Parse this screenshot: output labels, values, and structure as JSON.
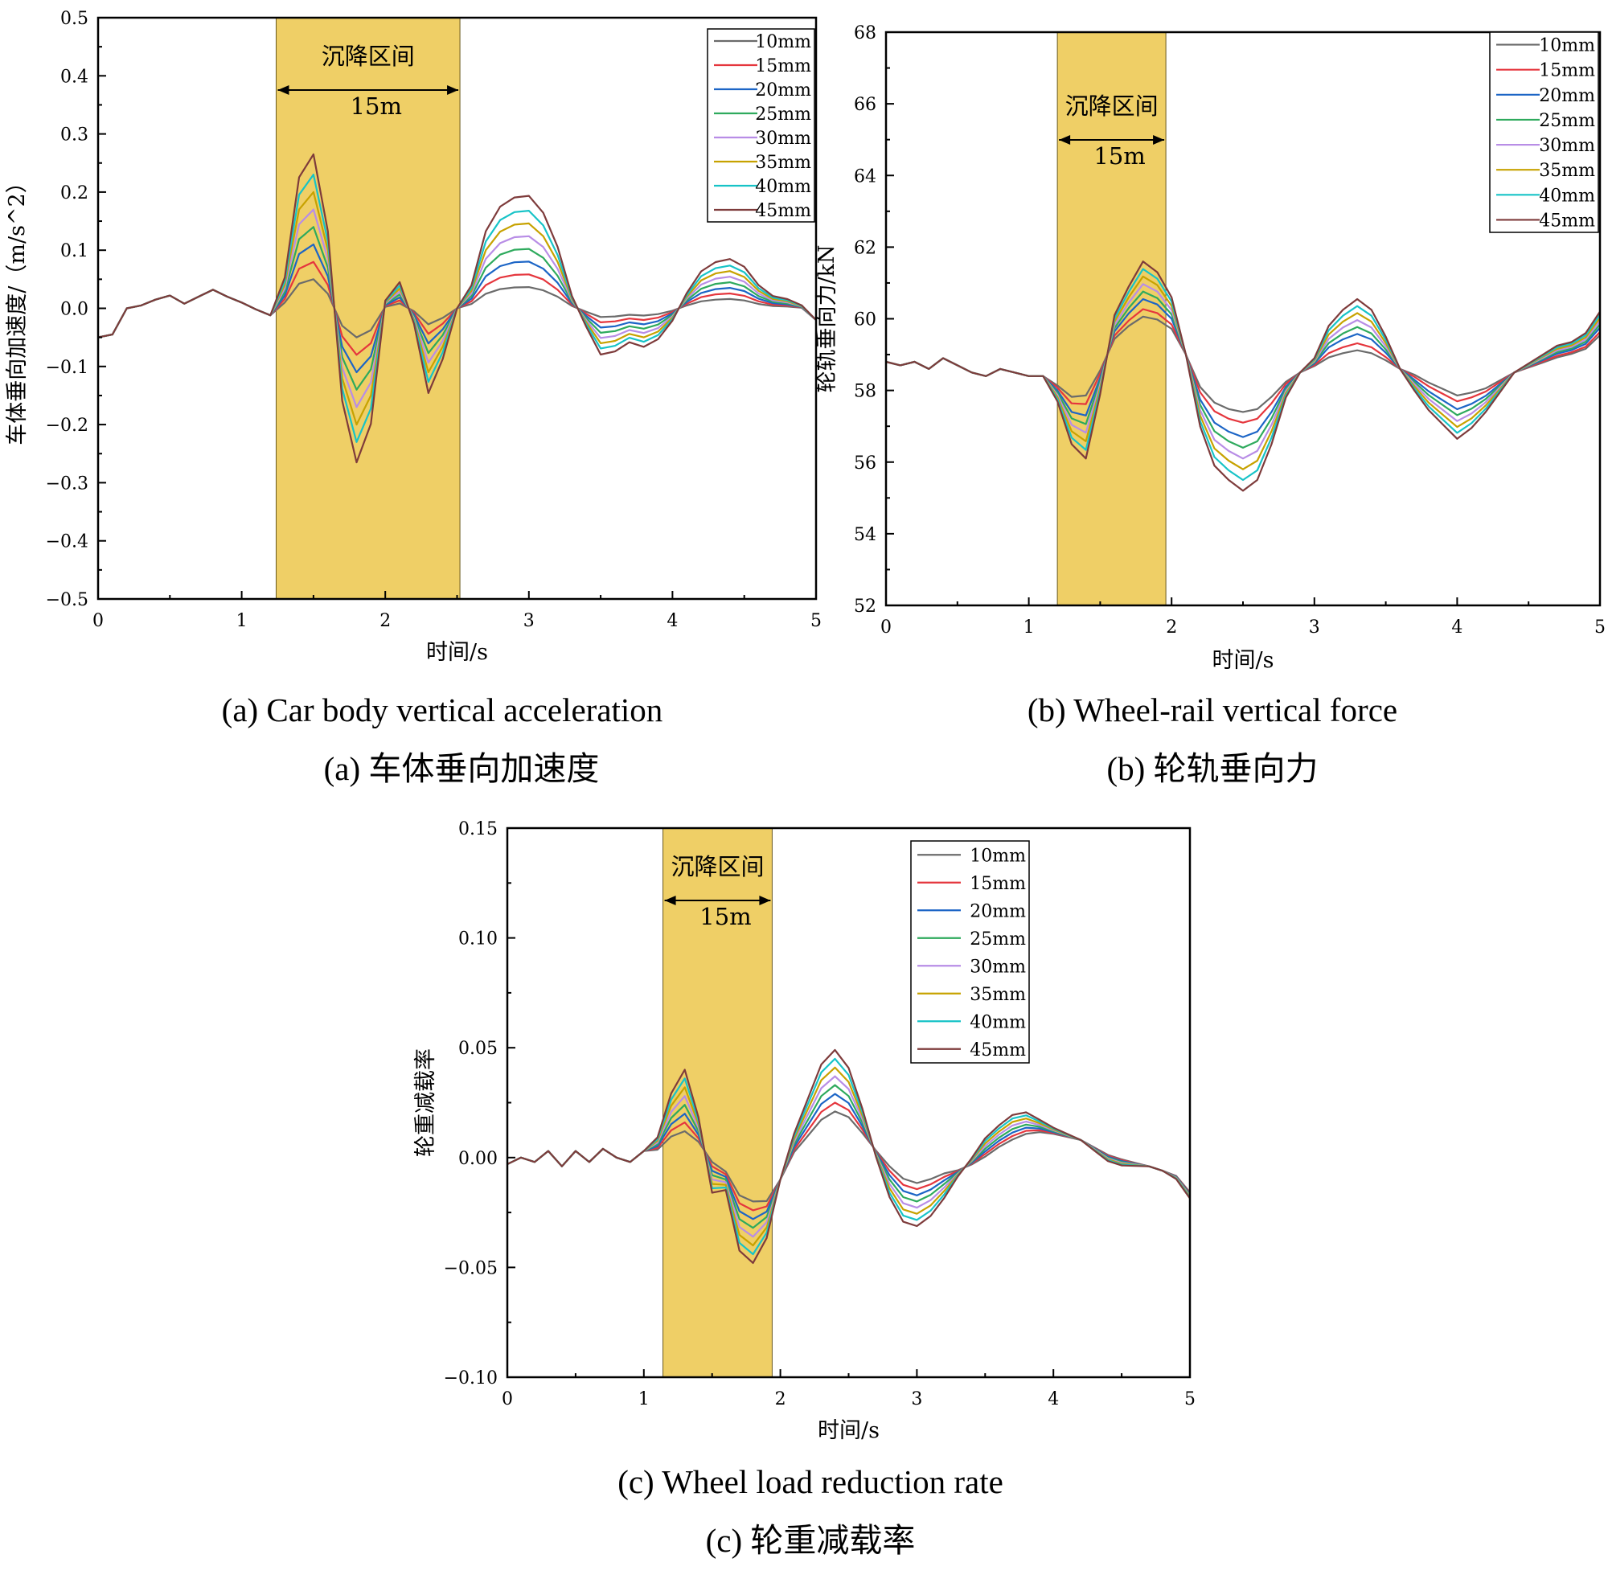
{
  "colors": {
    "settlement_zone": "#EFCF66",
    "axis": "#000000",
    "series": [
      "#6b6b6b",
      "#e5363d",
      "#1c65c6",
      "#2eaa5d",
      "#b88de6",
      "#c7a200",
      "#17c3c7",
      "#7e3b3b"
    ]
  },
  "captions": [
    {
      "en": "(a)   Car body vertical acceleration",
      "zh": "(a)   车体垂向加速度"
    },
    {
      "en": "(b)   Wheel-rail vertical force",
      "zh": "(b)   轮轨垂向力"
    },
    {
      "en": "(c)   Wheel load reduction rate",
      "zh": "(c)   轮重减载率"
    }
  ],
  "chart_data": [
    {
      "id": "a",
      "type": "line",
      "title": "Car body vertical acceleration",
      "xlabel": "时间/s",
      "ylabel": "车体垂向加速度/（m/s^2）",
      "xlim": [
        0,
        5
      ],
      "ylim": [
        -0.5,
        0.5
      ],
      "xticks": [
        "0",
        "1",
        "2",
        "3",
        "4",
        "5"
      ],
      "yticks": [
        "−0.5",
        "−0.4",
        "−0.3",
        "−0.2",
        "−0.1",
        "0.0",
        "0.1",
        "0.2",
        "0.3",
        "0.4",
        "0.5"
      ],
      "legend": [
        "10mm",
        "15mm",
        "20mm",
        "25mm",
        "30mm",
        "35mm",
        "40mm",
        "45mm"
      ],
      "legend_position": "top-right",
      "settlement_zone": {
        "x_start": 1.24,
        "x_end": 2.52,
        "label": "沉降区间",
        "length_label": "15m"
      },
      "x": [
        0,
        0.1,
        0.2,
        0.3,
        0.4,
        0.5,
        0.6,
        0.7,
        0.8,
        0.9,
        1.0,
        1.1,
        1.2,
        1.3,
        1.4,
        1.5,
        1.6,
        1.7,
        1.8,
        1.9,
        2.0,
        2.1,
        2.2,
        2.3,
        2.4,
        2.5,
        2.6,
        2.7,
        2.8,
        2.9,
        3.0,
        3.1,
        3.2,
        3.3,
        3.4,
        3.5,
        3.6,
        3.7,
        3.8,
        3.9,
        4.0,
        4.1,
        4.2,
        4.3,
        4.4,
        4.5,
        4.6,
        4.7,
        4.8,
        4.9,
        5.0
      ],
      "base": [
        -0.05,
        -0.045,
        0.0,
        0.005,
        0.015,
        0.022,
        0.008,
        0.02,
        0.032,
        0.02,
        0.01,
        -0.002,
        -0.012,
        0.0,
        0.0,
        0.0,
        0.0,
        0.0,
        0.0,
        0.0,
        0.0,
        0.0,
        0.0,
        0.0,
        0.0,
        0.0,
        0.0,
        0.0,
        0.0,
        0.0,
        0.0,
        0.0,
        0.0,
        0.0,
        0.0,
        0.0,
        0.0,
        0.0,
        0.0,
        0.0,
        0.0,
        0.0,
        0.0,
        0.0,
        0.0,
        0.0,
        0.0,
        0.0,
        0.0,
        0.0,
        -0.02
      ],
      "shape": [
        0,
        0,
        0,
        0,
        0,
        0,
        0,
        0,
        0,
        0,
        0,
        0,
        0,
        0.2,
        0.85,
        1.0,
        0.5,
        -0.6,
        -1.0,
        -0.75,
        0.05,
        0.17,
        -0.1,
        -0.55,
        -0.33,
        0.0,
        0.15,
        0.5,
        0.66,
        0.72,
        0.73,
        0.62,
        0.4,
        0.08,
        -0.12,
        -0.3,
        -0.28,
        -0.22,
        -0.25,
        -0.2,
        -0.08,
        0.1,
        0.24,
        0.3,
        0.32,
        0.27,
        0.15,
        0.08,
        0.06,
        0.02,
        0.0
      ],
      "scales": [
        0.05,
        0.08,
        0.11,
        0.14,
        0.17,
        0.2,
        0.23,
        0.265
      ]
    },
    {
      "id": "b",
      "type": "line",
      "title": "Wheel-rail vertical force",
      "xlabel": "时间/s",
      "ylabel": "轮轨垂向力/kN",
      "xlim": [
        0,
        5
      ],
      "ylim": [
        52,
        68
      ],
      "xticks": [
        "0",
        "1",
        "2",
        "3",
        "4",
        "5"
      ],
      "yticks": [
        "52",
        "54",
        "56",
        "58",
        "60",
        "62",
        "64",
        "66",
        "68"
      ],
      "legend": [
        "10mm",
        "15mm",
        "20mm",
        "25mm",
        "30mm",
        "35mm",
        "40mm",
        "45mm"
      ],
      "legend_position": "top-right",
      "settlement_zone": {
        "x_start": 1.2,
        "x_end": 1.96,
        "label": "沉降区间",
        "length_label": "15m"
      },
      "x": [
        0,
        0.1,
        0.2,
        0.3,
        0.4,
        0.5,
        0.6,
        0.7,
        0.8,
        0.9,
        1.0,
        1.1,
        1.2,
        1.3,
        1.4,
        1.5,
        1.6,
        1.7,
        1.8,
        1.9,
        2.0,
        2.1,
        2.2,
        2.3,
        2.4,
        2.5,
        2.6,
        2.7,
        2.8,
        2.9,
        3.0,
        3.1,
        3.2,
        3.3,
        3.4,
        3.5,
        3.6,
        3.7,
        3.8,
        3.9,
        4.0,
        4.1,
        4.2,
        4.3,
        4.4,
        4.5,
        4.6,
        4.7,
        4.8,
        4.9,
        5.0
      ],
      "base": [
        58.8,
        58.7,
        58.8,
        58.6,
        58.9,
        58.7,
        58.5,
        58.4,
        58.6,
        58.5,
        58.4,
        58.4,
        58.3,
        58.3,
        58.5,
        58.8,
        59.2,
        59.4,
        59.5,
        59.5,
        59.4,
        59.0,
        58.5,
        58.3,
        58.2,
        58.2,
        58.2,
        58.3,
        58.4,
        58.5,
        58.6,
        58.6,
        58.6,
        58.6,
        58.6,
        58.6,
        58.6,
        58.6,
        58.5,
        58.4,
        58.3,
        58.3,
        58.3,
        58.4,
        58.5,
        58.6,
        58.7,
        58.8,
        58.9,
        59.0,
        59.3
      ],
      "shape": [
        0,
        0,
        0,
        0,
        0,
        0,
        0,
        0,
        0,
        0,
        0,
        0,
        -0.2,
        -0.6,
        -0.8,
        -0.3,
        0.3,
        0.5,
        0.7,
        0.6,
        0.4,
        0.0,
        -0.5,
        -0.8,
        -0.9,
        -1.0,
        -0.9,
        -0.6,
        -0.2,
        0.0,
        0.1,
        0.4,
        0.55,
        0.65,
        0.55,
        0.3,
        0.0,
        -0.2,
        -0.35,
        -0.45,
        -0.55,
        -0.45,
        -0.3,
        -0.15,
        0.0,
        0.05,
        0.1,
        0.15,
        0.15,
        0.2,
        0.3
      ],
      "scales": [
        0.8,
        1.1,
        1.5,
        1.8,
        2.1,
        2.4,
        2.7,
        3.0
      ]
    },
    {
      "id": "c",
      "type": "line",
      "title": "Wheel load reduction rate",
      "xlabel": "时间/s",
      "ylabel": "轮重减载率",
      "xlim": [
        0,
        5
      ],
      "ylim": [
        -0.1,
        0.15
      ],
      "xticks": [
        "0",
        "1",
        "2",
        "3",
        "4",
        "5"
      ],
      "yticks": [
        "−0.10",
        "−0.05",
        "0.00",
        "0.05",
        "0.10",
        "0.15"
      ],
      "legend": [
        "10mm",
        "15mm",
        "20mm",
        "25mm",
        "30mm",
        "35mm",
        "40mm",
        "45mm"
      ],
      "legend_position": "top-right",
      "settlement_zone": {
        "x_start": 1.14,
        "x_end": 1.94,
        "label": "沉降区间",
        "length_label": "15m"
      },
      "x": [
        0,
        0.1,
        0.2,
        0.3,
        0.4,
        0.5,
        0.6,
        0.7,
        0.8,
        0.9,
        1.0,
        1.1,
        1.2,
        1.3,
        1.4,
        1.5,
        1.6,
        1.7,
        1.8,
        1.9,
        2.0,
        2.1,
        2.2,
        2.3,
        2.4,
        2.5,
        2.6,
        2.7,
        2.8,
        2.9,
        3.0,
        3.1,
        3.2,
        3.3,
        3.4,
        3.5,
        3.6,
        3.7,
        3.8,
        3.9,
        4.0,
        4.1,
        4.2,
        4.3,
        4.4,
        4.5,
        4.6,
        4.7,
        4.8,
        4.9,
        5.0
      ],
      "base": [
        -0.003,
        0.0,
        -0.002,
        0.003,
        -0.004,
        0.003,
        -0.002,
        0.004,
        0.0,
        -0.002,
        0.003,
        0.002,
        0.004,
        0.004,
        0.004,
        0.002,
        -0.004,
        -0.01,
        -0.012,
        -0.015,
        -0.01,
        0.0,
        0.005,
        0.01,
        0.013,
        0.012,
        0.008,
        0.004,
        0.0,
        -0.004,
        -0.006,
        -0.005,
        -0.004,
        -0.005,
        -0.004,
        -0.002,
        0.002,
        0.005,
        0.008,
        0.01,
        0.01,
        0.009,
        0.008,
        0.005,
        0.002,
        0.0,
        -0.002,
        -0.004,
        -0.006,
        -0.008,
        -0.015
      ],
      "shape": [
        0,
        0,
        0,
        0,
        0,
        0,
        0,
        0,
        0,
        0,
        0,
        0.2,
        0.7,
        1.0,
        0.4,
        -0.5,
        -0.3,
        -0.9,
        -1.0,
        -0.6,
        0.0,
        0.3,
        0.6,
        0.9,
        1.0,
        0.8,
        0.4,
        -0.1,
        -0.5,
        -0.7,
        -0.7,
        -0.6,
        -0.4,
        -0.1,
        0.1,
        0.3,
        0.35,
        0.4,
        0.35,
        0.2,
        0.1,
        0.05,
        0.0,
        -0.05,
        -0.1,
        -0.1,
        -0.05,
        0.0,
        0.0,
        -0.05,
        -0.1
      ],
      "scales": [
        0.008,
        0.012,
        0.016,
        0.02,
        0.024,
        0.028,
        0.032,
        0.036
      ]
    }
  ]
}
